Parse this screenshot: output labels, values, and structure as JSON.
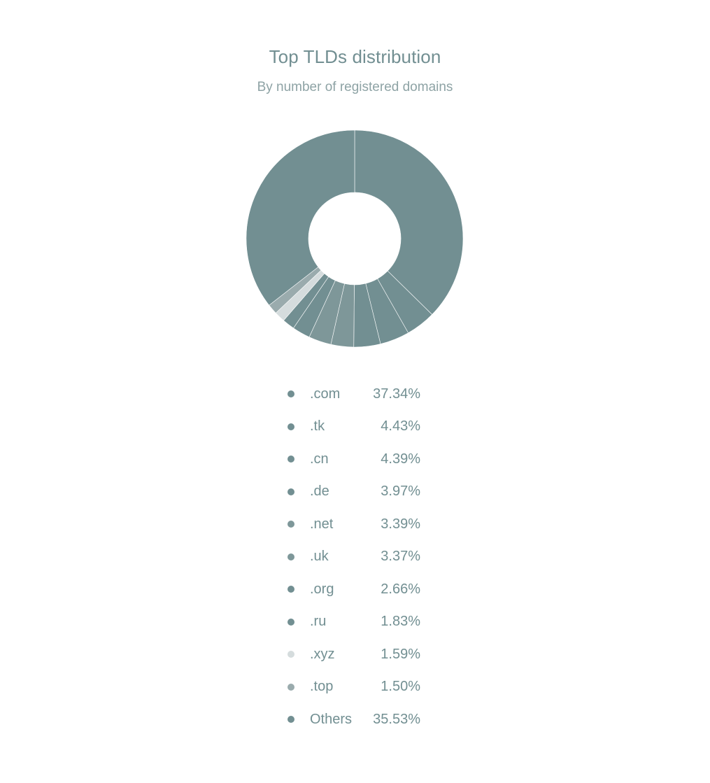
{
  "chart_data": {
    "type": "pie",
    "title": "Top TLDs distribution",
    "subtitle": "By number of registered domains",
    "donut": true,
    "legend_position": "bottom",
    "slices": [
      {
        "label": ".com",
        "value": 37.34,
        "value_label": "37.34%",
        "color": "#728f92"
      },
      {
        "label": ".tk",
        "value": 4.43,
        "value_label": "4.43%",
        "color": "#728f92"
      },
      {
        "label": ".cn",
        "value": 4.39,
        "value_label": "4.39%",
        "color": "#728f92"
      },
      {
        "label": ".de",
        "value": 3.97,
        "value_label": "3.97%",
        "color": "#728f92"
      },
      {
        "label": ".net",
        "value": 3.39,
        "value_label": "3.39%",
        "color": "#7e9799"
      },
      {
        "label": ".uk",
        "value": 3.37,
        "value_label": "3.37%",
        "color": "#7e9799"
      },
      {
        "label": ".org",
        "value": 2.66,
        "value_label": "2.66%",
        "color": "#728f92"
      },
      {
        "label": ".ru",
        "value": 1.83,
        "value_label": "1.83%",
        "color": "#728f92"
      },
      {
        "label": ".xyz",
        "value": 1.59,
        "value_label": "1.59%",
        "color": "#d5dcdd"
      },
      {
        "label": ".top",
        "value": 1.5,
        "value_label": "1.50%",
        "color": "#9aabad"
      },
      {
        "label": "Others",
        "value": 35.53,
        "value_label": "35.53%",
        "color": "#728f92"
      }
    ]
  }
}
